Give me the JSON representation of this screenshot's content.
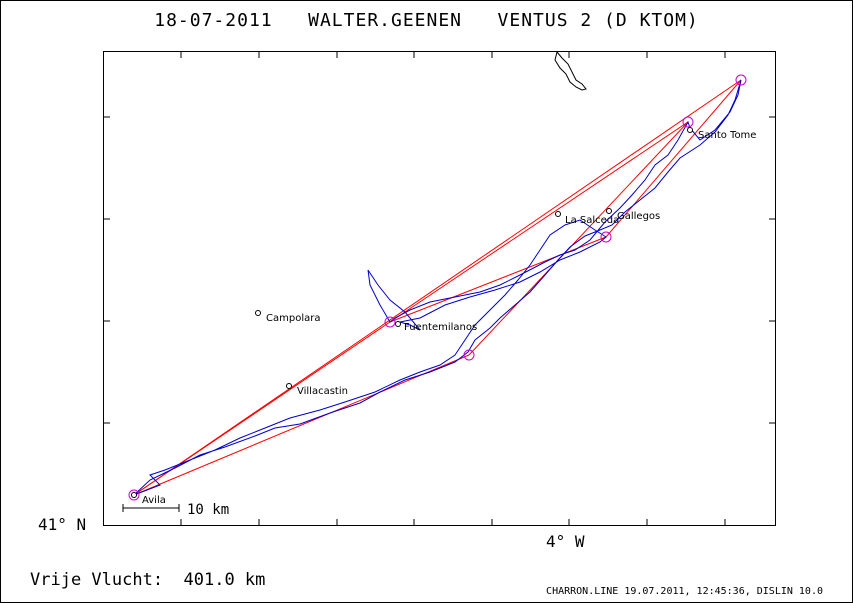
{
  "title": "18-07-2011   WALTER.GEENEN   VENTUS 2 (D KTOM)",
  "axis": {
    "lat_label": "41° N",
    "lon_label": "4° W"
  },
  "scale_bar": {
    "label": "10 km"
  },
  "places": [
    {
      "name": "Avila"
    },
    {
      "name": "Villacastin"
    },
    {
      "name": "Campolara"
    },
    {
      "name": "Fuentemilanos"
    },
    {
      "name": "La Salceda"
    },
    {
      "name": "Gallegos"
    },
    {
      "name": "Santo Tome"
    }
  ],
  "footer": {
    "distance": "Vrije Vlucht:  401.0 km",
    "credit": "CHARRON.LINE 19.07.2011, 12:45:36, DISLIN 10.0"
  },
  "colors": {
    "track": "#0000cc",
    "task_line": "#ff0000",
    "turnpoint": "#cc00cc",
    "frame": "#000000"
  }
}
